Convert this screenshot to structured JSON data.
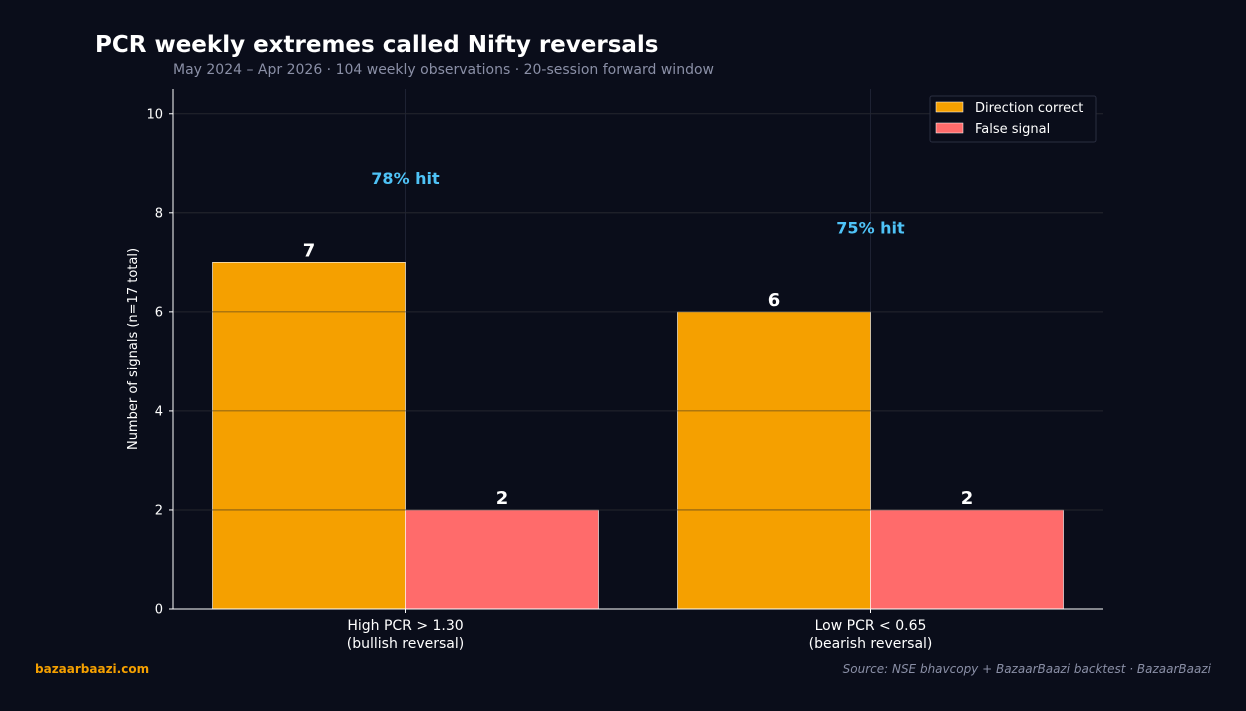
{
  "header": {
    "title": "PCR weekly extremes called Nifty reversals",
    "subtitle": "May 2024 – Apr 2026  ·  104 weekly observations  ·  20-session forward window"
  },
  "footer": {
    "brand": "bazaarbaazi.com",
    "source": "Source: NSE bhavcopy + BazaarBaazi backtest  ·  BazaarBaazi"
  },
  "colors": {
    "background": "#0a0d1a",
    "correct": "#f5a000",
    "false": "#ff6b6b",
    "hit": "#4fc3f7"
  },
  "chart_data": {
    "type": "bar",
    "title": "PCR weekly extremes called Nifty reversals",
    "ylabel": "Number of signals (n=17 total)",
    "xlabel": "",
    "ylim": [
      0,
      10.5
    ],
    "yticks": [
      0,
      2,
      4,
      6,
      8,
      10
    ],
    "grid": true,
    "legend_position": "top-right",
    "categories": [
      [
        "High PCR > 1.30",
        "(bullish reversal)"
      ],
      [
        "Low PCR < 0.65",
        "(bearish reversal)"
      ]
    ],
    "series": [
      {
        "name": "Direction correct",
        "values": [
          7,
          6
        ]
      },
      {
        "name": "False signal",
        "values": [
          2,
          2
        ]
      }
    ],
    "annotations": [
      {
        "text": "78% hit",
        "category": 0,
        "y": 8.7
      },
      {
        "text": "75% hit",
        "category": 1,
        "y": 7.7
      }
    ]
  }
}
